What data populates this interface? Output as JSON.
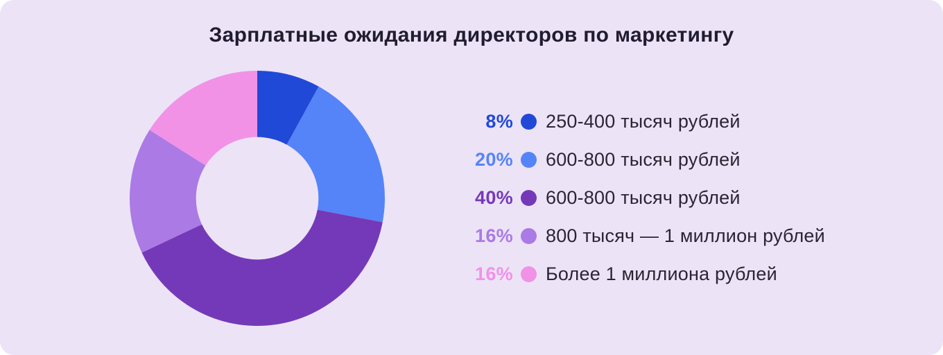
{
  "page": {
    "background_color": "#ece3f7",
    "outer_background_color": "#ffffff",
    "title_color": "#211c30",
    "label_text_color": "#2b2533"
  },
  "title": "Зарплатные ожидания директоров по маркетингу",
  "chart_data": {
    "type": "pie",
    "subtype": "donut",
    "title": "Зарплатные ожидания директоров по маркетингу",
    "start_angle_deg": 0,
    "direction": "clockwise",
    "inner_radius_ratio": 0.48,
    "legend_position": "right",
    "unit": "%",
    "categories": [
      "250-400 тысяч рублей",
      "600-800 тысяч рублей",
      "600-800 тысяч рублей",
      "800 тысяч — 1 миллион рублей",
      "Более 1 миллиона рублей"
    ],
    "values": [
      8,
      20,
      40,
      16,
      16
    ],
    "colors": [
      "#2149d8",
      "#5584f8",
      "#7439b8",
      "#ab7ae5",
      "#f192e7"
    ]
  },
  "legend": {
    "items": [
      {
        "percent": "8%",
        "label": "250-400 тысяч рублей",
        "color": "#2149d8"
      },
      {
        "percent": "20%",
        "label": "600-800 тысяч рублей",
        "color": "#5584f8"
      },
      {
        "percent": "40%",
        "label": "600-800 тысяч рублей",
        "color": "#7439b8"
      },
      {
        "percent": "16%",
        "label": "800 тысяч — 1 миллион рублей",
        "color": "#ab7ae5"
      },
      {
        "percent": "16%",
        "label": "Более 1 миллиона рублей",
        "color": "#f192e7"
      }
    ]
  }
}
